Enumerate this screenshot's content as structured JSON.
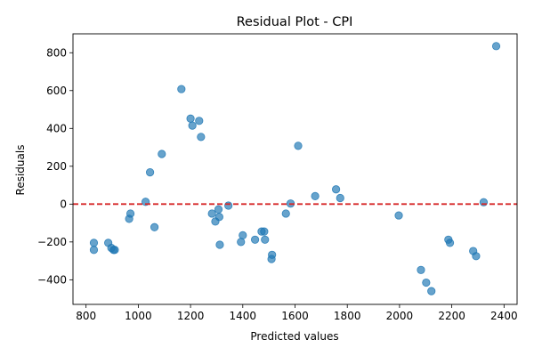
{
  "chart_data": {
    "type": "scatter",
    "title": "Residual Plot - CPI",
    "xlabel": "Predicted values",
    "ylabel": "Residuals",
    "xlim": [
      750,
      2450
    ],
    "ylim": [
      -530,
      900
    ],
    "xticks": [
      800,
      1000,
      1200,
      1400,
      1600,
      1800,
      2000,
      2200,
      2400
    ],
    "yticks": [
      -400,
      -200,
      0,
      200,
      400,
      600,
      800
    ],
    "grid": false,
    "reference_line": {
      "y": 0,
      "color": "#d62728",
      "style": "dashed"
    },
    "marker_color": "#1f77b4",
    "points": [
      {
        "x": 830,
        "y": -205
      },
      {
        "x": 830,
        "y": -242
      },
      {
        "x": 885,
        "y": -205
      },
      {
        "x": 897,
        "y": -232
      },
      {
        "x": 905,
        "y": -242
      },
      {
        "x": 910,
        "y": -242
      },
      {
        "x": 965,
        "y": -78
      },
      {
        "x": 970,
        "y": -50
      },
      {
        "x": 1028,
        "y": 12
      },
      {
        "x": 1045,
        "y": 168
      },
      {
        "x": 1062,
        "y": -122
      },
      {
        "x": 1090,
        "y": 265
      },
      {
        "x": 1165,
        "y": 608
      },
      {
        "x": 1200,
        "y": 452
      },
      {
        "x": 1207,
        "y": 415
      },
      {
        "x": 1233,
        "y": 440
      },
      {
        "x": 1240,
        "y": 355
      },
      {
        "x": 1282,
        "y": -50
      },
      {
        "x": 1295,
        "y": -92
      },
      {
        "x": 1307,
        "y": -28
      },
      {
        "x": 1310,
        "y": -68
      },
      {
        "x": 1312,
        "y": -215
      },
      {
        "x": 1345,
        "y": -8
      },
      {
        "x": 1393,
        "y": -200
      },
      {
        "x": 1400,
        "y": -165
      },
      {
        "x": 1447,
        "y": -188
      },
      {
        "x": 1472,
        "y": -145
      },
      {
        "x": 1482,
        "y": -145
      },
      {
        "x": 1485,
        "y": -188
      },
      {
        "x": 1510,
        "y": -290
      },
      {
        "x": 1512,
        "y": -268
      },
      {
        "x": 1565,
        "y": -50
      },
      {
        "x": 1583,
        "y": 3
      },
      {
        "x": 1612,
        "y": 308
      },
      {
        "x": 1677,
        "y": 42
      },
      {
        "x": 1757,
        "y": 78
      },
      {
        "x": 1773,
        "y": 32
      },
      {
        "x": 1997,
        "y": -60
      },
      {
        "x": 2082,
        "y": -348
      },
      {
        "x": 2102,
        "y": -415
      },
      {
        "x": 2122,
        "y": -460
      },
      {
        "x": 2187,
        "y": -188
      },
      {
        "x": 2193,
        "y": -205
      },
      {
        "x": 2282,
        "y": -248
      },
      {
        "x": 2293,
        "y": -275
      },
      {
        "x": 2322,
        "y": 10
      },
      {
        "x": 2370,
        "y": 835
      }
    ]
  }
}
